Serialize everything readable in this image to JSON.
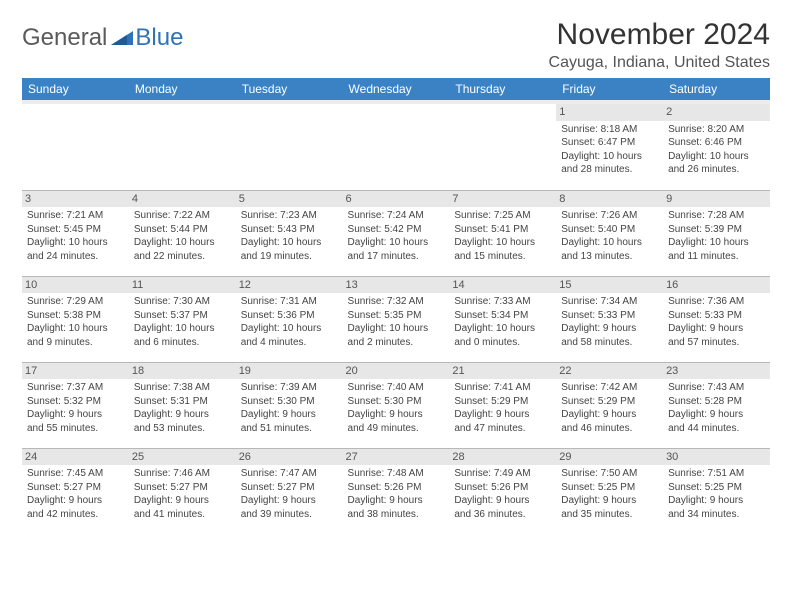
{
  "logo": {
    "text1": "General",
    "text2": "Blue"
  },
  "title": "November 2024",
  "location": "Cayuga, Indiana, United States",
  "day_headers": [
    "Sunday",
    "Monday",
    "Tuesday",
    "Wednesday",
    "Thursday",
    "Friday",
    "Saturday"
  ],
  "colors": {
    "header_bg": "#3b82c4",
    "header_fg": "#ffffff",
    "shade_bg": "#e7e7e7",
    "border": "#b8b8b8",
    "logo_gray": "#5a5a5a",
    "logo_blue": "#2f73b6"
  },
  "weeks": [
    [
      null,
      null,
      null,
      null,
      null,
      {
        "n": "1",
        "sr": "Sunrise: 8:18 AM",
        "ss": "Sunset: 6:47 PM",
        "d1": "Daylight: 10 hours",
        "d2": "and 28 minutes."
      },
      {
        "n": "2",
        "sr": "Sunrise: 8:20 AM",
        "ss": "Sunset: 6:46 PM",
        "d1": "Daylight: 10 hours",
        "d2": "and 26 minutes."
      }
    ],
    [
      {
        "n": "3",
        "sr": "Sunrise: 7:21 AM",
        "ss": "Sunset: 5:45 PM",
        "d1": "Daylight: 10 hours",
        "d2": "and 24 minutes."
      },
      {
        "n": "4",
        "sr": "Sunrise: 7:22 AM",
        "ss": "Sunset: 5:44 PM",
        "d1": "Daylight: 10 hours",
        "d2": "and 22 minutes."
      },
      {
        "n": "5",
        "sr": "Sunrise: 7:23 AM",
        "ss": "Sunset: 5:43 PM",
        "d1": "Daylight: 10 hours",
        "d2": "and 19 minutes."
      },
      {
        "n": "6",
        "sr": "Sunrise: 7:24 AM",
        "ss": "Sunset: 5:42 PM",
        "d1": "Daylight: 10 hours",
        "d2": "and 17 minutes."
      },
      {
        "n": "7",
        "sr": "Sunrise: 7:25 AM",
        "ss": "Sunset: 5:41 PM",
        "d1": "Daylight: 10 hours",
        "d2": "and 15 minutes."
      },
      {
        "n": "8",
        "sr": "Sunrise: 7:26 AM",
        "ss": "Sunset: 5:40 PM",
        "d1": "Daylight: 10 hours",
        "d2": "and 13 minutes."
      },
      {
        "n": "9",
        "sr": "Sunrise: 7:28 AM",
        "ss": "Sunset: 5:39 PM",
        "d1": "Daylight: 10 hours",
        "d2": "and 11 minutes."
      }
    ],
    [
      {
        "n": "10",
        "sr": "Sunrise: 7:29 AM",
        "ss": "Sunset: 5:38 PM",
        "d1": "Daylight: 10 hours",
        "d2": "and 9 minutes."
      },
      {
        "n": "11",
        "sr": "Sunrise: 7:30 AM",
        "ss": "Sunset: 5:37 PM",
        "d1": "Daylight: 10 hours",
        "d2": "and 6 minutes."
      },
      {
        "n": "12",
        "sr": "Sunrise: 7:31 AM",
        "ss": "Sunset: 5:36 PM",
        "d1": "Daylight: 10 hours",
        "d2": "and 4 minutes."
      },
      {
        "n": "13",
        "sr": "Sunrise: 7:32 AM",
        "ss": "Sunset: 5:35 PM",
        "d1": "Daylight: 10 hours",
        "d2": "and 2 minutes."
      },
      {
        "n": "14",
        "sr": "Sunrise: 7:33 AM",
        "ss": "Sunset: 5:34 PM",
        "d1": "Daylight: 10 hours",
        "d2": "and 0 minutes."
      },
      {
        "n": "15",
        "sr": "Sunrise: 7:34 AM",
        "ss": "Sunset: 5:33 PM",
        "d1": "Daylight: 9 hours",
        "d2": "and 58 minutes."
      },
      {
        "n": "16",
        "sr": "Sunrise: 7:36 AM",
        "ss": "Sunset: 5:33 PM",
        "d1": "Daylight: 9 hours",
        "d2": "and 57 minutes."
      }
    ],
    [
      {
        "n": "17",
        "sr": "Sunrise: 7:37 AM",
        "ss": "Sunset: 5:32 PM",
        "d1": "Daylight: 9 hours",
        "d2": "and 55 minutes."
      },
      {
        "n": "18",
        "sr": "Sunrise: 7:38 AM",
        "ss": "Sunset: 5:31 PM",
        "d1": "Daylight: 9 hours",
        "d2": "and 53 minutes."
      },
      {
        "n": "19",
        "sr": "Sunrise: 7:39 AM",
        "ss": "Sunset: 5:30 PM",
        "d1": "Daylight: 9 hours",
        "d2": "and 51 minutes."
      },
      {
        "n": "20",
        "sr": "Sunrise: 7:40 AM",
        "ss": "Sunset: 5:30 PM",
        "d1": "Daylight: 9 hours",
        "d2": "and 49 minutes."
      },
      {
        "n": "21",
        "sr": "Sunrise: 7:41 AM",
        "ss": "Sunset: 5:29 PM",
        "d1": "Daylight: 9 hours",
        "d2": "and 47 minutes."
      },
      {
        "n": "22",
        "sr": "Sunrise: 7:42 AM",
        "ss": "Sunset: 5:29 PM",
        "d1": "Daylight: 9 hours",
        "d2": "and 46 minutes."
      },
      {
        "n": "23",
        "sr": "Sunrise: 7:43 AM",
        "ss": "Sunset: 5:28 PM",
        "d1": "Daylight: 9 hours",
        "d2": "and 44 minutes."
      }
    ],
    [
      {
        "n": "24",
        "sr": "Sunrise: 7:45 AM",
        "ss": "Sunset: 5:27 PM",
        "d1": "Daylight: 9 hours",
        "d2": "and 42 minutes."
      },
      {
        "n": "25",
        "sr": "Sunrise: 7:46 AM",
        "ss": "Sunset: 5:27 PM",
        "d1": "Daylight: 9 hours",
        "d2": "and 41 minutes."
      },
      {
        "n": "26",
        "sr": "Sunrise: 7:47 AM",
        "ss": "Sunset: 5:27 PM",
        "d1": "Daylight: 9 hours",
        "d2": "and 39 minutes."
      },
      {
        "n": "27",
        "sr": "Sunrise: 7:48 AM",
        "ss": "Sunset: 5:26 PM",
        "d1": "Daylight: 9 hours",
        "d2": "and 38 minutes."
      },
      {
        "n": "28",
        "sr": "Sunrise: 7:49 AM",
        "ss": "Sunset: 5:26 PM",
        "d1": "Daylight: 9 hours",
        "d2": "and 36 minutes."
      },
      {
        "n": "29",
        "sr": "Sunrise: 7:50 AM",
        "ss": "Sunset: 5:25 PM",
        "d1": "Daylight: 9 hours",
        "d2": "and 35 minutes."
      },
      {
        "n": "30",
        "sr": "Sunrise: 7:51 AM",
        "ss": "Sunset: 5:25 PM",
        "d1": "Daylight: 9 hours",
        "d2": "and 34 minutes."
      }
    ]
  ]
}
